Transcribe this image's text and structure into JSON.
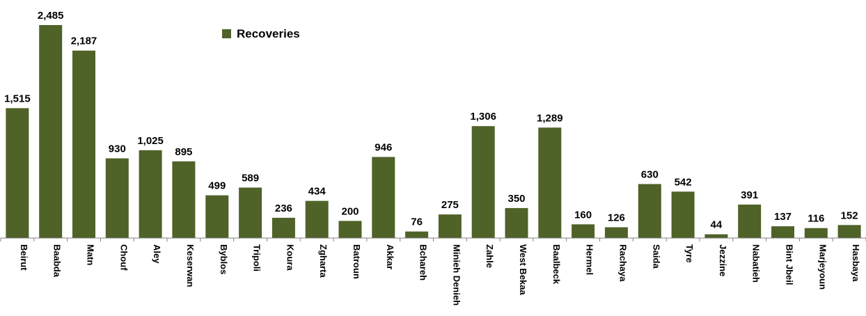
{
  "chart_data": {
    "type": "bar",
    "categories": [
      "Beirut",
      "Baabda",
      "Matn",
      "Chouf",
      "Aley",
      "Keserwan",
      "Byblos",
      "Tripoli",
      "Koura",
      "Zgharta",
      "Batroun",
      "Akkar",
      "Bchareh",
      "Minieh Denieh",
      "Zahle",
      "West Bekaa",
      "Baalbeck",
      "Hermel",
      "Rachaya",
      "Saida",
      "Tyre",
      "Jezzine",
      "Nabatieh",
      "Bint Jbeil",
      "Marjeyoun",
      "Hasbaya"
    ],
    "series": [
      {
        "name": "Recoveries",
        "values": [
          1515,
          2485,
          2187,
          930,
          1025,
          895,
          499,
          589,
          236,
          434,
          200,
          946,
          76,
          275,
          1306,
          350,
          1289,
          160,
          126,
          630,
          542,
          44,
          391,
          137,
          116,
          152
        ],
        "labels": [
          "1,515",
          "2,485",
          "2,187",
          "930",
          "1,025",
          "895",
          "499",
          "589",
          "236",
          "434",
          "200",
          "946",
          "76",
          "275",
          "1,306",
          "350",
          "1,289",
          "160",
          "126",
          "630",
          "542",
          "44",
          "391",
          "137",
          "116",
          "152"
        ]
      }
    ],
    "color": "#4f6228",
    "legend_position": "top-center",
    "grid": false,
    "ylim": [
      0,
      2485
    ]
  }
}
